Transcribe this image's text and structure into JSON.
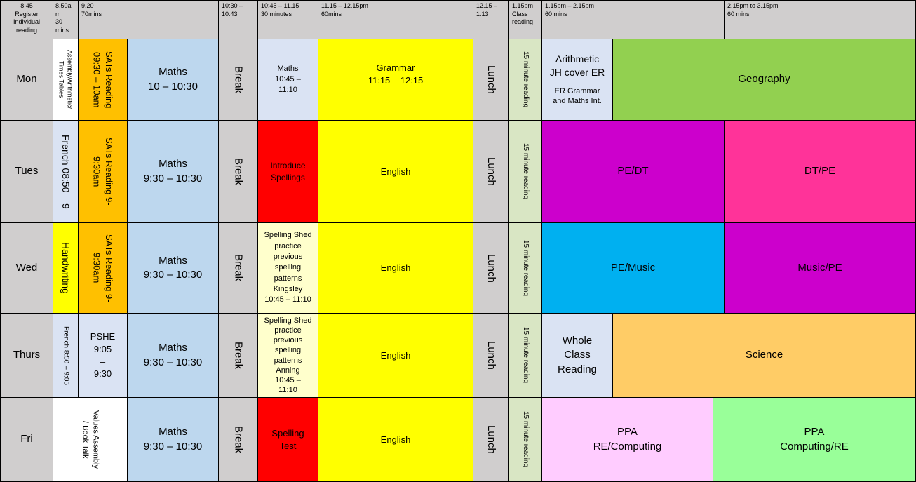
{
  "header": {
    "register": "8.45\nRegister\nIndividual\nreading",
    "assembly_time": "8.50a\nm\n30\nmins",
    "t920": "9.20\n70mins",
    "break_time": "10:30 –\n10.43",
    "t1045": "10:45 – 11.15\n30 minutes",
    "t1115": "11.15 – 12.15pm\n60mins",
    "lunch_time": "12.15 –\n1.13",
    "class_reading": "1.15pm\nClass\nreading",
    "t115": "1.15pm – 2.15pm\n60 mins",
    "t215": "2.15pm to 3.15pm\n60 mins"
  },
  "days": {
    "mon": "Mon",
    "tues": "Tues",
    "wed": "Wed",
    "thurs": "Thurs",
    "fri": "Fri"
  },
  "mon": {
    "assembly": "Assembly/Arithmetic/\nTimes Tables",
    "sats": "SATs Reading\n09:30 – 10am",
    "maths": "Maths\n10 – 10:30",
    "break": "Break",
    "maths2": "Maths\n10:45 –\n11:10",
    "grammar": "Grammar\n11:15 – 12:15",
    "lunch": "Lunch",
    "reading": "15 minute reading",
    "arith_title": "Arithmetic\nJH cover ER",
    "arith_sub": "ER Grammar\nand Maths Int.",
    "geography": "Geography"
  },
  "tues": {
    "french": "French 08:50 – 9",
    "sats": "SATs Reading 9-\n9:30am",
    "maths": "Maths\n9:30 – 10:30",
    "break": "Break",
    "spellings": "Introduce\nSpellings",
    "english": "English",
    "lunch": "Lunch",
    "reading": "15 minute reading",
    "pedt": "PE/DT",
    "dtpe": "DT/PE"
  },
  "wed": {
    "handwriting": "Handwriting",
    "sats": "SATs Reading 9-\n9:30am",
    "maths": "Maths\n9:30 – 10:30",
    "break": "Break",
    "spelling": "Spelling Shed\npractice\nprevious\nspelling\npatterns\nKingsley\n10:45 – 11:10",
    "english": "English",
    "lunch": "Lunch",
    "reading": "15 minute reading",
    "pemusic": "PE/Music",
    "musicpe": "Music/PE"
  },
  "thurs": {
    "french": "French 8:50 – 9:05",
    "pshe": "PSHE\n9:05\n–\n9:30",
    "maths": "Maths\n9:30 – 10:30",
    "break": "Break",
    "spelling": "Spelling Shed\npractice\nprevious\nspelling\npatterns\nAnning\n10:45 –\n11:10",
    "english": "English",
    "lunch": "Lunch",
    "reading": "15 minute reading",
    "whole": "Whole\nClass\nReading",
    "science": "Science"
  },
  "fri": {
    "values": "Values  Assembly\n/  Book Talk",
    "maths": "Maths\n9:30 – 10:30",
    "break": "Break",
    "spelling": "Spelling\nTest",
    "english": "English",
    "lunch": "Lunch",
    "reading": "15 minute reading",
    "ppa1": "PPA\nRE/Computing",
    "ppa2": "PPA\nComputing/RE"
  }
}
